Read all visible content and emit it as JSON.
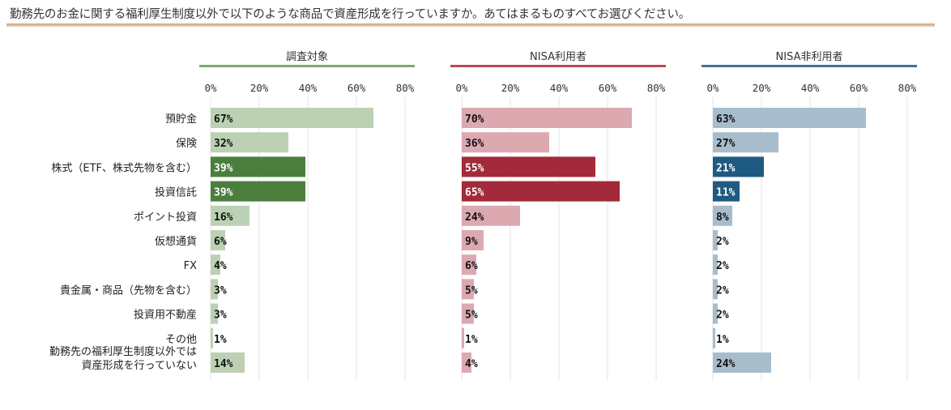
{
  "question": "勤務先のお金に関する福利厚生制度以外で以下のような商品で資産形成を行っていますか。あてはまるものすべてお選びください。",
  "chart_data": [
    {
      "type": "bar",
      "title": "調査対象",
      "categories": [
        "預貯金",
        "保険",
        "株式（ETF、株式先物を含む）",
        "投資信託",
        "ポイント投資",
        "仮想通貨",
        "FX",
        "貴金属・商品（先物を含む）",
        "投資用不動産",
        "その他",
        "勤務先の福利厚生制度以外では 資産形成を行っていない"
      ],
      "values": [
        67,
        32,
        39,
        39,
        16,
        6,
        4,
        3,
        3,
        1,
        14
      ],
      "xticks": [
        "0%",
        "20%",
        "40%",
        "60%",
        "80%"
      ],
      "xlim": [
        0,
        80
      ],
      "unit": "%",
      "colors": {
        "base": "#bcd1b4",
        "highlight": "#4b7e3d",
        "title_rule": "#7fa873"
      },
      "highlighted": [
        "株式（ETF、株式先物を含む）",
        "投資信託"
      ]
    },
    {
      "type": "bar",
      "title": "NISA利用者",
      "categories": [
        "預貯金",
        "保険",
        "株式（ETF、株式先物を含む）",
        "投資信託",
        "ポイント投資",
        "仮想通貨",
        "FX",
        "貴金属・商品（先物を含む）",
        "投資用不動産",
        "その他",
        "勤務先の福利厚生制度以外では 資産形成を行っていない"
      ],
      "values": [
        70,
        36,
        55,
        65,
        24,
        9,
        6,
        5,
        5,
        1,
        4
      ],
      "xticks": [
        "0%",
        "20%",
        "40%",
        "60%",
        "80%"
      ],
      "xlim": [
        0,
        80
      ],
      "unit": "%",
      "colors": {
        "base": "#dca9b1",
        "highlight": "#a32a3a",
        "title_rule": "#b84a5a"
      },
      "highlighted": [
        "株式（ETF、株式先物を含む）",
        "投資信託"
      ]
    },
    {
      "type": "bar",
      "title": "NISA非利用者",
      "categories": [
        "預貯金",
        "保険",
        "株式（ETF、株式先物を含む）",
        "投資信託",
        "ポイント投資",
        "仮想通貨",
        "FX",
        "貴金属・商品（先物を含む）",
        "投資用不動産",
        "その他",
        "勤務先の福利厚生制度以外では 資産形成を行っていない"
      ],
      "values": [
        63,
        27,
        21,
        11,
        8,
        2,
        2,
        2,
        2,
        1,
        24
      ],
      "xticks": [
        "0%",
        "20%",
        "40%",
        "60%",
        "80%"
      ],
      "xlim": [
        0,
        80
      ],
      "unit": "%",
      "colors": {
        "base": "#a8bdcc",
        "highlight": "#1f5a82",
        "title_rule": "#3f7199"
      },
      "highlighted": [
        "株式（ETF、株式先物を含む）",
        "投資信託"
      ]
    }
  ]
}
